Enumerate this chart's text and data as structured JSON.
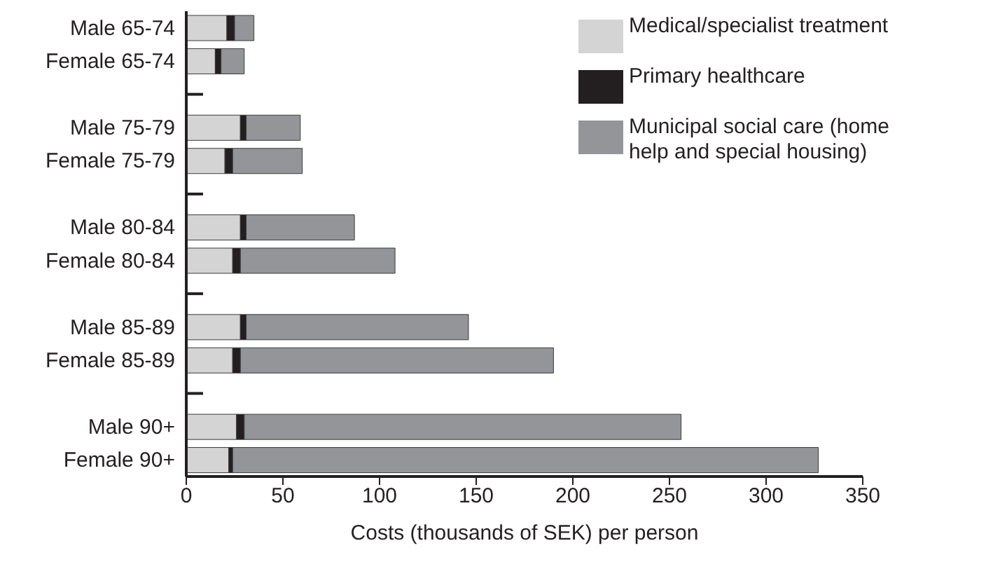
{
  "chart_data": {
    "type": "bar",
    "orientation": "horizontal",
    "stacked": true,
    "xlabel": "Costs (thousands of SEK) per person",
    "categories": [
      "Male 65-74",
      "Female 65-74",
      null,
      "Male 75-79",
      "Female 75-79",
      null,
      "Male 80-84",
      "Female 80-84",
      null,
      "Male 85-89",
      "Female 85-89",
      null,
      "Male 90+",
      "Female 90+"
    ],
    "series": [
      {
        "name": "Medical/specialist treatment",
        "color": "#d4d4d5",
        "values": [
          21,
          15,
          null,
          28,
          20,
          null,
          28,
          24,
          null,
          28,
          24,
          null,
          26,
          22
        ]
      },
      {
        "name": "Primary healthcare",
        "color": "#231f20",
        "values": [
          4,
          3,
          null,
          3,
          4,
          null,
          3,
          4,
          null,
          3,
          4,
          null,
          4,
          2
        ]
      },
      {
        "name": "Municipal social care (home help and special housing)",
        "color": "#939598",
        "values": [
          10,
          12,
          null,
          28,
          36,
          null,
          56,
          80,
          null,
          115,
          162,
          null,
          226,
          303
        ]
      }
    ],
    "xlim": [
      0,
      350
    ],
    "xticks": [
      0,
      50,
      100,
      150,
      200,
      250,
      300,
      350
    ],
    "grid": false,
    "legend": "top right"
  }
}
